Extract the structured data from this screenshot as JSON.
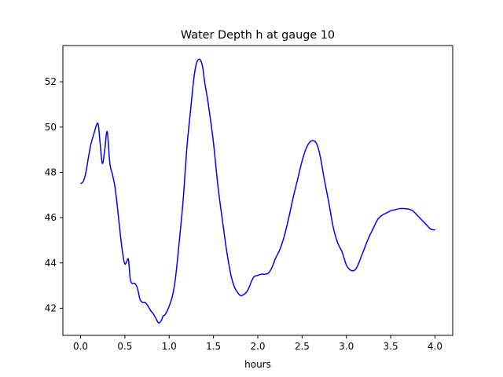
{
  "chart_data": {
    "type": "line",
    "title": "Water Depth h at gauge 10",
    "xlabel": "hours",
    "ylabel": "",
    "xlim": [
      -0.2,
      4.2
    ],
    "ylim": [
      40.8,
      53.6
    ],
    "xticks": [
      "0.0",
      "0.5",
      "1.0",
      "1.5",
      "2.0",
      "2.5",
      "3.0",
      "3.5",
      "4.0"
    ],
    "yticks": [
      "42",
      "44",
      "46",
      "48",
      "50",
      "52"
    ],
    "grid": false,
    "series": [
      {
        "color": "#0000ff",
        "x": [
          0.0,
          0.03,
          0.06,
          0.09,
          0.12,
          0.15,
          0.18,
          0.2,
          0.22,
          0.245,
          0.27,
          0.3,
          0.33,
          0.36,
          0.39,
          0.42,
          0.45,
          0.48,
          0.5,
          0.52,
          0.54,
          0.56,
          0.58,
          0.61,
          0.64,
          0.67,
          0.7,
          0.73,
          0.76,
          0.79,
          0.82,
          0.85,
          0.88,
          0.91,
          0.93,
          0.95,
          0.98,
          1.01,
          1.04,
          1.07,
          1.1,
          1.13,
          1.16,
          1.2,
          1.24,
          1.28,
          1.31,
          1.34,
          1.36,
          1.38,
          1.4,
          1.43,
          1.46,
          1.5,
          1.55,
          1.6,
          1.65,
          1.7,
          1.74,
          1.78,
          1.81,
          1.84,
          1.87,
          1.9,
          1.93,
          1.96,
          2.0,
          2.04,
          2.08,
          2.12,
          2.16,
          2.2,
          2.25,
          2.3,
          2.35,
          2.4,
          2.45,
          2.5,
          2.55,
          2.59,
          2.62,
          2.65,
          2.68,
          2.71,
          2.75,
          2.8,
          2.85,
          2.9,
          2.95,
          3.0,
          3.04,
          3.07,
          3.1,
          3.13,
          3.17,
          3.21,
          3.25,
          3.3,
          3.35,
          3.4,
          3.45,
          3.5,
          3.55,
          3.6,
          3.65,
          3.7,
          3.75,
          3.8,
          3.85,
          3.9,
          3.95,
          4.0
        ],
        "y": [
          47.5,
          47.6,
          48.0,
          48.7,
          49.3,
          49.7,
          50.1,
          50.1,
          49.3,
          48.4,
          48.9,
          49.8,
          48.4,
          47.9,
          47.3,
          46.3,
          45.2,
          44.3,
          43.95,
          44.05,
          44.15,
          43.3,
          43.1,
          43.1,
          42.9,
          42.4,
          42.25,
          42.25,
          42.1,
          41.9,
          41.75,
          41.55,
          41.35,
          41.45,
          41.65,
          41.7,
          41.9,
          42.2,
          42.6,
          43.3,
          44.4,
          45.6,
          46.9,
          49.1,
          50.7,
          52.2,
          52.85,
          53.0,
          52.9,
          52.6,
          52.0,
          51.3,
          50.5,
          49.3,
          47.4,
          45.9,
          44.5,
          43.4,
          42.9,
          42.65,
          42.55,
          42.6,
          42.7,
          42.9,
          43.2,
          43.4,
          43.45,
          43.5,
          43.5,
          43.55,
          43.8,
          44.2,
          44.6,
          45.2,
          46.0,
          46.9,
          47.7,
          48.5,
          49.1,
          49.35,
          49.4,
          49.35,
          49.1,
          48.6,
          47.7,
          46.7,
          45.6,
          44.9,
          44.5,
          43.9,
          43.7,
          43.65,
          43.7,
          43.9,
          44.3,
          44.7,
          45.1,
          45.5,
          45.9,
          46.1,
          46.2,
          46.3,
          46.35,
          46.4,
          46.4,
          46.38,
          46.3,
          46.1,
          45.9,
          45.7,
          45.5,
          45.45
        ]
      }
    ]
  }
}
